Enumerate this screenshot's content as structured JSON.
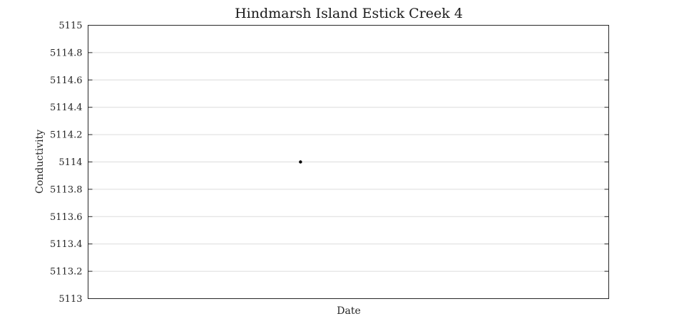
{
  "chart_data": {
    "type": "scatter",
    "title": "Hindmarsh Island Estick Creek 4",
    "xlabel": "Date",
    "ylabel": "Conductivity",
    "ylim": [
      5113,
      5115
    ],
    "yticks": [
      "5113",
      "5113.2",
      "5113.4",
      "5113.6",
      "5113.8",
      "5114",
      "5114.2",
      "5114.4",
      "5114.6",
      "5114.8",
      "5115"
    ],
    "xticks": [],
    "grid": "horizontal",
    "points": [
      {
        "x_fraction": 0.408,
        "y": 5114
      }
    ],
    "marker_color": "#000000"
  }
}
